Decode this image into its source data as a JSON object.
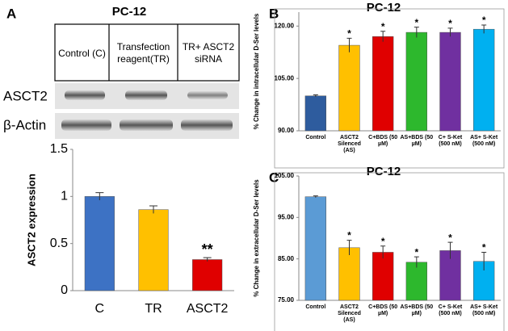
{
  "blot": {
    "panel": "A",
    "title": "PC-12",
    "columns": [
      "Control (C)",
      "Transfection reagent(TR)",
      "TR+ ASCT2 siRNA"
    ],
    "rows": [
      "ASCT2",
      "β-Actin"
    ]
  },
  "chart_data": [
    {
      "type": "bar",
      "ylabel": "ASCT2 expression",
      "categories": [
        "C",
        "TR",
        "ASCT2"
      ],
      "values": [
        1.0,
        0.86,
        0.33
      ],
      "errors": [
        0.04,
        0.04,
        0.02
      ],
      "colors": [
        "#3d72c4",
        "#ffc000",
        "#e00000"
      ],
      "ylim": [
        0,
        1.5
      ],
      "yticks": [
        0,
        0.5,
        1,
        1.5
      ],
      "annotations": [
        {
          "text": "**",
          "x": "ASCT2"
        }
      ]
    },
    {
      "type": "bar",
      "panel": "B",
      "title": "PC-12",
      "ylabel": "% Change in intracellular D-Ser levels",
      "categories": [
        "Control",
        "ASCT2 Silenced (AS)",
        "C+BDS (50 µM)",
        "AS+BDS (50 µM)",
        "C+ S-Ket (500 nM)",
        "AS+ S-Ket (500 nM)"
      ],
      "values": [
        100,
        114.5,
        117,
        118.2,
        118.2,
        119.1
      ],
      "errors": [
        0.3,
        2,
        1.5,
        1.5,
        1.2,
        1.2
      ],
      "colors": [
        "#2e5c9e",
        "#ffc000",
        "#e00000",
        "#2db82d",
        "#7030a0",
        "#00b0f0"
      ],
      "ylim": [
        90,
        124
      ],
      "yticks": [
        {
          "value": 90,
          "label": "90.00"
        },
        {
          "value": 105,
          "label": "105.00"
        },
        {
          "value": 120,
          "label": "120.00"
        }
      ],
      "annotations": [
        {
          "text": "*",
          "x": "ASCT2 Silenced (AS)"
        },
        {
          "text": "*",
          "x": "C+BDS (50 µM)"
        },
        {
          "text": "*",
          "x": "AS+BDS (50 µM)"
        },
        {
          "text": "*",
          "x": "C+ S-Ket (500 nM)"
        },
        {
          "text": "*",
          "x": "AS+ S-Ket (500 nM)"
        }
      ]
    },
    {
      "type": "bar",
      "panel": "C",
      "title": "PC-12",
      "ylabel": "% Change in extracellular D-Ser levels",
      "categories": [
        "Control",
        "ASCT2 Silenced (AS)",
        "C+BDS (50 µM)",
        "AS+BDS (50 µM)",
        "C+ S-Ket (500 nM)",
        "AS+ S-Ket (500 nM)"
      ],
      "values": [
        100,
        87.7,
        86.6,
        84.2,
        87,
        84.4
      ],
      "errors": [
        0.2,
        1.8,
        1.5,
        1.3,
        2,
        2.2
      ],
      "colors": [
        "#5b9bd5",
        "#ffc000",
        "#e00000",
        "#2db82d",
        "#7030a0",
        "#00b0f0"
      ],
      "ylim": [
        75,
        105
      ],
      "yticks": [
        {
          "value": 75,
          "label": "75.00"
        },
        {
          "value": 85,
          "label": "85.00"
        },
        {
          "value": 95,
          "label": "95.00"
        },
        {
          "value": 105,
          "label": "105.00"
        }
      ],
      "annotations": [
        {
          "text": "*",
          "x": "ASCT2 Silenced (AS)"
        },
        {
          "text": "*",
          "x": "C+BDS (50 µM)"
        },
        {
          "text": "*",
          "x": "AS+BDS (50 µM)"
        },
        {
          "text": "*",
          "x": "C+ S-Ket (500 nM)"
        },
        {
          "text": "*",
          "x": "AS+ S-Ket (500 nM)"
        }
      ]
    }
  ]
}
